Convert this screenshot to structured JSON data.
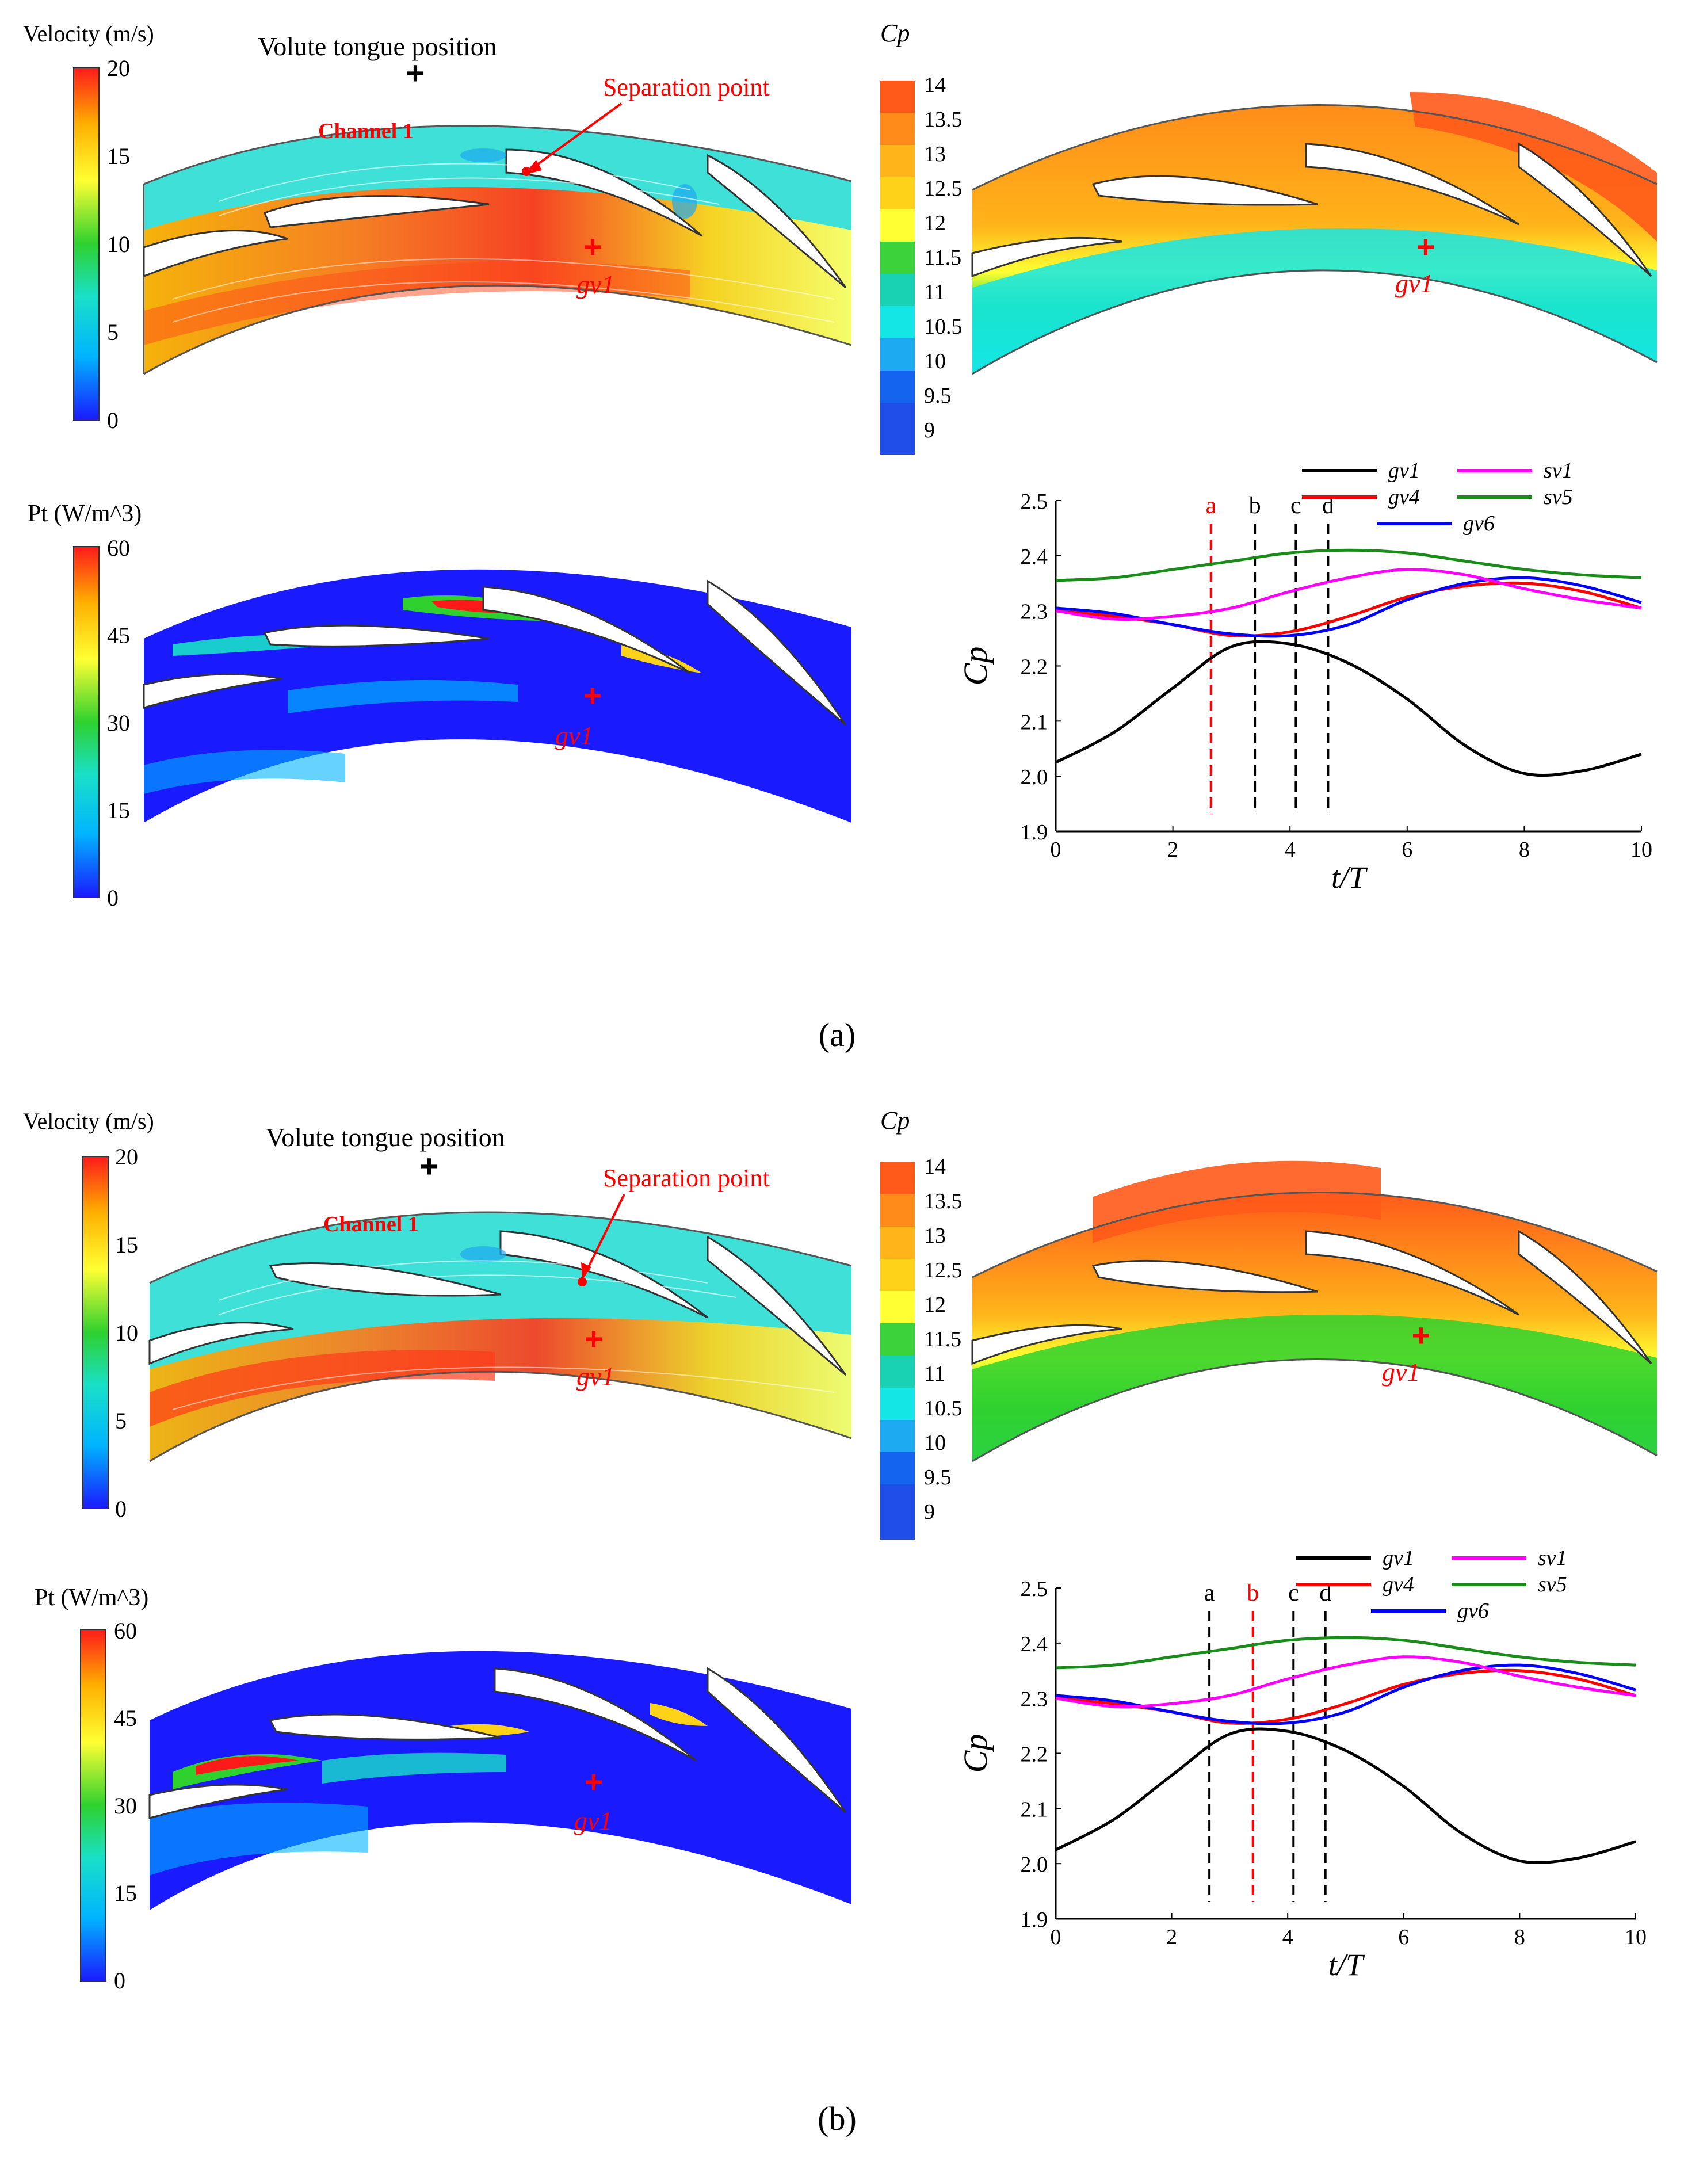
{
  "panels": [
    {
      "caption": "(a)",
      "velocity": {
        "title": "Velocity (m/s)",
        "ticks": [
          "20",
          "15",
          "10",
          "5",
          "0"
        ],
        "volute_label": "Volute tongue position",
        "separation_label": "Separation point",
        "channel_label": "Channel 1",
        "probe_label": "gv1"
      },
      "cp_contour": {
        "title": "Cp",
        "ticks": [
          "14",
          "13.5",
          "13",
          "12.5",
          "12",
          "11.5",
          "11",
          "10.5",
          "10",
          "9.5",
          "9"
        ],
        "probe_label": "gv1"
      },
      "pt": {
        "title": "Pt (W/m^3)",
        "ticks": [
          "60",
          "45",
          "30",
          "15",
          "0"
        ],
        "probe_label": "gv1"
      },
      "marker_labels": [
        "a",
        "b",
        "c",
        "d"
      ],
      "highlight_marker": 0
    },
    {
      "caption": "(b)",
      "velocity": {
        "title": "Velocity (m/s)",
        "ticks": [
          "20",
          "15",
          "10",
          "5",
          "0"
        ],
        "volute_label": "Volute tongue position",
        "separation_label": "Separation point",
        "channel_label": "Channel 1",
        "probe_label": "gv1"
      },
      "cp_contour": {
        "title": "Cp",
        "ticks": [
          "14",
          "13.5",
          "13",
          "12.5",
          "12",
          "11.5",
          "11",
          "10.5",
          "10",
          "9.5",
          "9"
        ],
        "probe_label": "gv1"
      },
      "pt": {
        "title": "Pt (W/m^3)",
        "ticks": [
          "60",
          "45",
          "30",
          "15",
          "0"
        ],
        "probe_label": "gv1"
      },
      "marker_labels": [
        "a",
        "b",
        "c",
        "d"
      ],
      "highlight_marker": 1
    }
  ],
  "colors": {
    "jet": [
      "#1a1aff",
      "#00b4ff",
      "#19e0c8",
      "#2ed12e",
      "#ffff33",
      "#ffb000",
      "#ff1a1a"
    ],
    "cp_scale": [
      "#ff5a1a",
      "#ff8c1a",
      "#ffb41a",
      "#ffd21a",
      "#ffff33",
      "#c8e61a",
      "#3cd23c",
      "#19d2b4",
      "#14e6e6",
      "#1eaaf0",
      "#1464f0"
    ],
    "annotation_red": "#ff0000",
    "highlight_red": "#ff0000",
    "marker_black": "#000000"
  },
  "chart_data": [
    {
      "type": "line",
      "xlabel": "t/T",
      "ylabel": "Cp",
      "xlim": [
        0,
        10
      ],
      "ylim": [
        1.9,
        2.5
      ],
      "xticks": [
        0,
        2,
        4,
        6,
        8,
        10
      ],
      "yticks": [
        1.9,
        2.0,
        2.1,
        2.2,
        2.3,
        2.4,
        2.5
      ],
      "ytick_labels": [
        "1.9",
        "2.0",
        "2.1",
        "2.2",
        "2.3",
        "2.4",
        "2.5"
      ],
      "markers": [
        {
          "label": "a",
          "x": 2.65
        },
        {
          "label": "b",
          "x": 3.4
        },
        {
          "label": "c",
          "x": 4.1
        },
        {
          "label": "d",
          "x": 4.65
        }
      ],
      "highlight": 0,
      "series": [
        {
          "name": "gv1",
          "color": "#000000",
          "x": [
            0,
            1,
            2,
            3,
            4,
            5,
            6,
            7,
            8,
            9,
            10
          ],
          "y": [
            2.025,
            2.08,
            2.16,
            2.235,
            2.24,
            2.205,
            2.14,
            2.055,
            2.005,
            2.01,
            2.04
          ]
        },
        {
          "name": "gv4",
          "color": "#ff0000",
          "x": [
            0,
            1,
            2,
            3,
            4,
            5,
            6,
            7,
            8,
            9,
            10
          ],
          "y": [
            2.3,
            2.29,
            2.275,
            2.255,
            2.262,
            2.29,
            2.325,
            2.345,
            2.35,
            2.335,
            2.305
          ]
        },
        {
          "name": "gv6",
          "color": "#0000ff",
          "x": [
            0,
            1,
            2,
            3,
            4,
            5,
            6,
            7,
            8,
            9,
            10
          ],
          "y": [
            2.305,
            2.295,
            2.275,
            2.258,
            2.255,
            2.275,
            2.32,
            2.35,
            2.36,
            2.345,
            2.315
          ]
        },
        {
          "name": "sv1",
          "color": "#ff00ff",
          "x": [
            0,
            1,
            2,
            3,
            4,
            5,
            6,
            7,
            8,
            9,
            10
          ],
          "y": [
            2.3,
            2.285,
            2.29,
            2.305,
            2.335,
            2.36,
            2.375,
            2.365,
            2.34,
            2.32,
            2.305
          ]
        },
        {
          "name": "sv5",
          "color": "#1a8c1a",
          "x": [
            0,
            1,
            2,
            3,
            4,
            5,
            6,
            7,
            8,
            9,
            10
          ],
          "y": [
            2.355,
            2.36,
            2.375,
            2.39,
            2.405,
            2.41,
            2.405,
            2.39,
            2.375,
            2.365,
            2.36
          ]
        }
      ]
    },
    {
      "type": "line",
      "xlabel": "t/T",
      "ylabel": "Cp",
      "xlim": [
        0,
        10
      ],
      "ylim": [
        1.9,
        2.5
      ],
      "xticks": [
        0,
        2,
        4,
        6,
        8,
        10
      ],
      "yticks": [
        1.9,
        2.0,
        2.1,
        2.2,
        2.3,
        2.4,
        2.5
      ],
      "ytick_labels": [
        "1.9",
        "2.0",
        "2.1",
        "2.2",
        "2.3",
        "2.4",
        "2.5"
      ],
      "markers": [
        {
          "label": "a",
          "x": 2.65
        },
        {
          "label": "b",
          "x": 3.4
        },
        {
          "label": "c",
          "x": 4.1
        },
        {
          "label": "d",
          "x": 4.65
        }
      ],
      "highlight": 1,
      "series": [
        {
          "name": "gv1",
          "color": "#000000",
          "x": [
            0,
            1,
            2,
            3,
            4,
            5,
            6,
            7,
            8,
            9,
            10
          ],
          "y": [
            2.025,
            2.08,
            2.16,
            2.235,
            2.24,
            2.205,
            2.14,
            2.055,
            2.005,
            2.01,
            2.04
          ]
        },
        {
          "name": "gv4",
          "color": "#ff0000",
          "x": [
            0,
            1,
            2,
            3,
            4,
            5,
            6,
            7,
            8,
            9,
            10
          ],
          "y": [
            2.3,
            2.29,
            2.275,
            2.255,
            2.262,
            2.29,
            2.325,
            2.345,
            2.35,
            2.335,
            2.305
          ]
        },
        {
          "name": "gv6",
          "color": "#0000ff",
          "x": [
            0,
            1,
            2,
            3,
            4,
            5,
            6,
            7,
            8,
            9,
            10
          ],
          "y": [
            2.305,
            2.295,
            2.275,
            2.258,
            2.255,
            2.275,
            2.32,
            2.35,
            2.36,
            2.345,
            2.315
          ]
        },
        {
          "name": "sv1",
          "color": "#ff00ff",
          "x": [
            0,
            1,
            2,
            3,
            4,
            5,
            6,
            7,
            8,
            9,
            10
          ],
          "y": [
            2.3,
            2.285,
            2.29,
            2.305,
            2.335,
            2.36,
            2.375,
            2.365,
            2.34,
            2.32,
            2.305
          ]
        },
        {
          "name": "sv5",
          "color": "#1a8c1a",
          "x": [
            0,
            1,
            2,
            3,
            4,
            5,
            6,
            7,
            8,
            9,
            10
          ],
          "y": [
            2.355,
            2.36,
            2.375,
            2.39,
            2.405,
            2.41,
            2.405,
            2.39,
            2.375,
            2.365,
            2.36
          ]
        }
      ]
    }
  ]
}
